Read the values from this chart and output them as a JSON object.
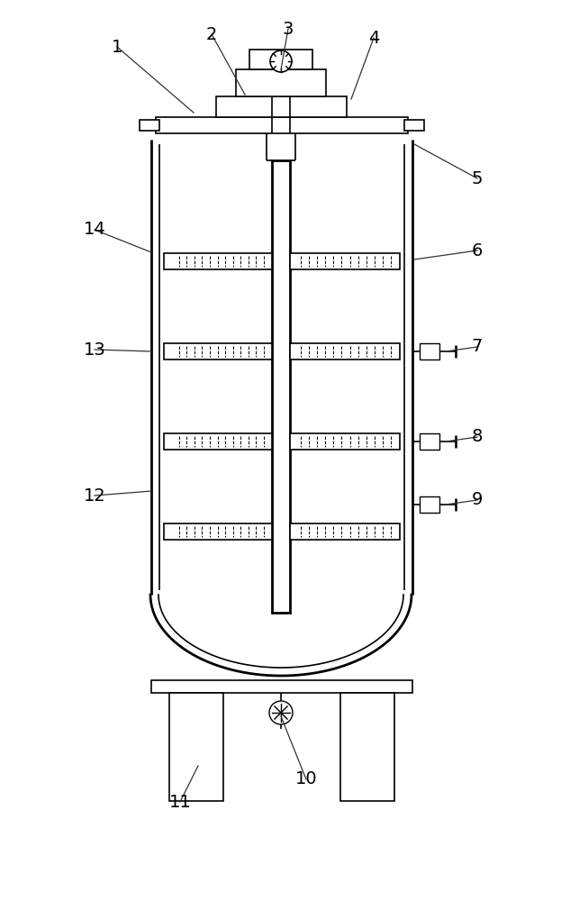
{
  "bg_color": "#ffffff",
  "line_color": "#000000",
  "lw": 1.2,
  "lw_thick": 2.0,
  "label_fontsize": 14,
  "figsize": [
    6.23,
    10.0
  ],
  "dpi": 100
}
